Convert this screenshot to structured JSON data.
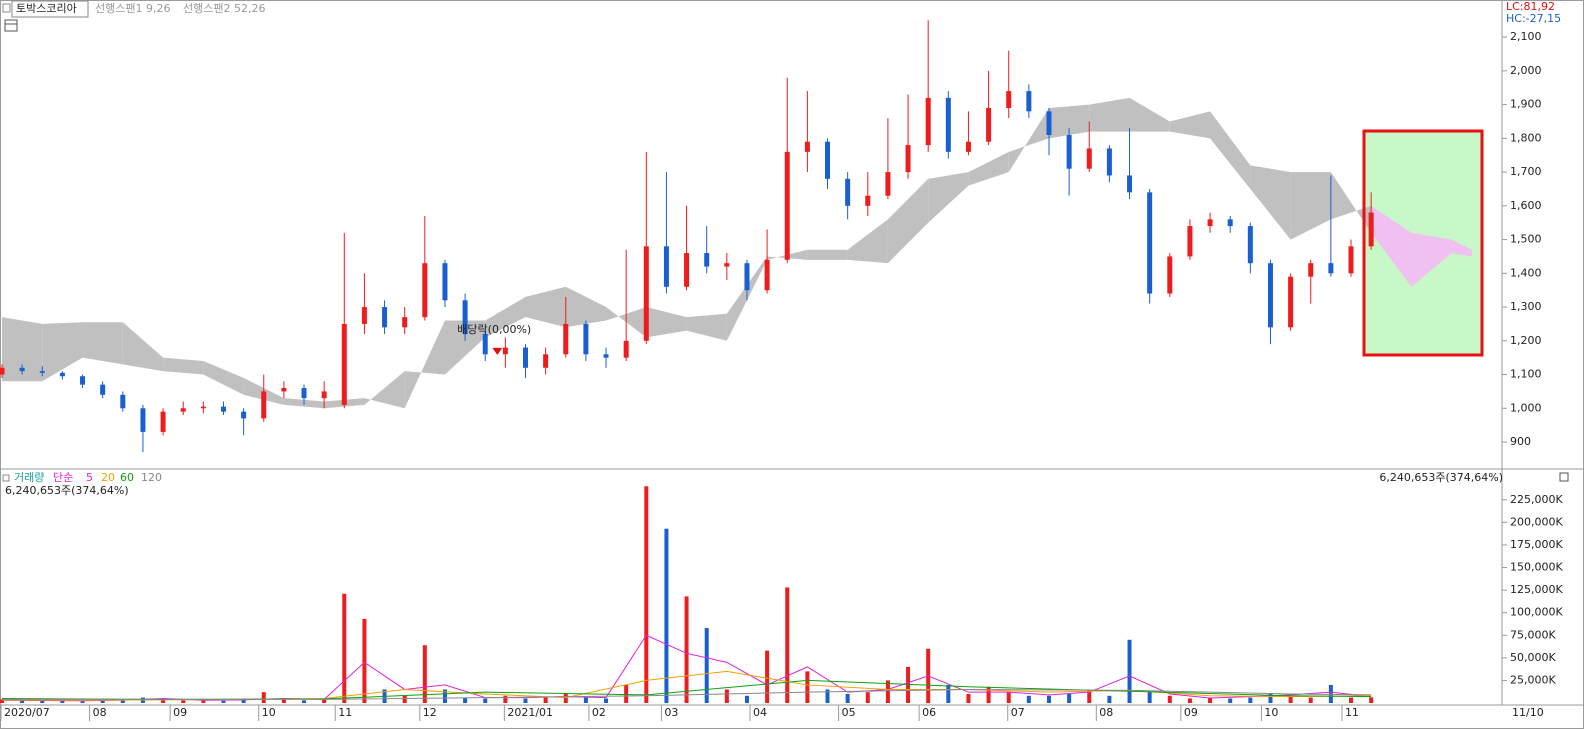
{
  "chart_data": [
    {
      "type": "candlestick",
      "title": "토박스코리아",
      "legend": [
        "선행스팬1 9,26",
        "선행스팬2 52,26"
      ],
      "annotations": [
        "LC:81,92",
        "HC:-27,15"
      ],
      "up_color": "#ee1c1c",
      "down_color": "#1a5fd0",
      "x": [
        0,
        5,
        10,
        15,
        20,
        25,
        30,
        35,
        40,
        45,
        50,
        55,
        60,
        65,
        70,
        75,
        80,
        85,
        90,
        95,
        100,
        105,
        110,
        115,
        120,
        125,
        130,
        135,
        140,
        145,
        150,
        155,
        160,
        165,
        170,
        175,
        180,
        185,
        190,
        195,
        200,
        205,
        210,
        215,
        220,
        225,
        230,
        235,
        240,
        245,
        250,
        255,
        260,
        265,
        270,
        275,
        280,
        285,
        290,
        295,
        300,
        305,
        310,
        315,
        320,
        325,
        330,
        335,
        340
      ],
      "open": [
        1100,
        1120,
        1110,
        1105,
        1095,
        1070,
        1040,
        1000,
        930,
        990,
        1000,
        1005,
        990,
        970,
        1050,
        1060,
        1030,
        1010,
        1250,
        1300,
        1240,
        1270,
        1430,
        1320,
        1220,
        1160,
        1180,
        1120,
        1160,
        1250,
        1160,
        1150,
        1200,
        1480,
        1360,
        1460,
        1420,
        1430,
        1350,
        1440,
        1760,
        1790,
        1680,
        1600,
        1630,
        1700,
        1780,
        1920,
        1760,
        1790,
        1890,
        1940,
        1880,
        1810,
        1710,
        1770,
        1690,
        1640,
        1340,
        1450,
        1540,
        1560,
        1540,
        1430,
        1240,
        1390,
        1430,
        1400,
        1480
      ],
      "high": [
        1130,
        1130,
        1125,
        1110,
        1100,
        1080,
        1050,
        1010,
        1000,
        1020,
        1020,
        1020,
        1000,
        1100,
        1080,
        1070,
        1080,
        1520,
        1400,
        1320,
        1300,
        1570,
        1440,
        1340,
        1240,
        1210,
        1190,
        1180,
        1330,
        1260,
        1180,
        1470,
        1760,
        1700,
        1600,
        1540,
        1460,
        1440,
        1530,
        1980,
        1940,
        1800,
        1700,
        1700,
        1860,
        1930,
        2150,
        1940,
        1880,
        2000,
        2060,
        1960,
        1890,
        1830,
        1850,
        1780,
        1830,
        1650,
        1460,
        1560,
        1580,
        1570,
        1550,
        1440,
        1400,
        1440,
        1690,
        1500,
        1640
      ],
      "low": [
        1090,
        1100,
        1095,
        1085,
        1060,
        1030,
        990,
        870,
        920,
        980,
        985,
        980,
        920,
        960,
        1030,
        1010,
        1000,
        1000,
        1220,
        1220,
        1220,
        1260,
        1300,
        1200,
        1140,
        1120,
        1090,
        1100,
        1150,
        1140,
        1120,
        1140,
        1190,
        1340,
        1350,
        1400,
        1380,
        1320,
        1340,
        1430,
        1700,
        1650,
        1560,
        1570,
        1620,
        1680,
        1760,
        1740,
        1750,
        1780,
        1860,
        1860,
        1750,
        1630,
        1700,
        1670,
        1620,
        1310,
        1330,
        1440,
        1520,
        1520,
        1400,
        1190,
        1230,
        1310,
        1390,
        1390,
        1470
      ],
      "close": [
        1120,
        1110,
        1105,
        1095,
        1070,
        1040,
        1000,
        930,
        990,
        1000,
        1005,
        990,
        970,
        1050,
        1060,
        1030,
        1050,
        1250,
        1300,
        1240,
        1270,
        1430,
        1320,
        1220,
        1160,
        1180,
        1120,
        1160,
        1250,
        1160,
        1150,
        1200,
        1480,
        1360,
        1460,
        1420,
        1430,
        1350,
        1440,
        1760,
        1790,
        1680,
        1600,
        1630,
        1700,
        1780,
        1920,
        1760,
        1790,
        1890,
        1940,
        1880,
        1810,
        1710,
        1770,
        1690,
        1640,
        1340,
        1450,
        1540,
        1560,
        1540,
        1430,
        1240,
        1390,
        1430,
        1400,
        1480,
        1580
      ],
      "cloud": {
        "color": "#c0c0c0",
        "future_color": "#f0c0f0",
        "x": [
          0,
          10,
          20,
          30,
          40,
          50,
          60,
          70,
          80,
          90,
          100,
          110,
          120,
          130,
          140,
          150,
          160,
          170,
          180,
          190,
          200,
          210,
          220,
          230,
          240,
          250,
          260,
          270,
          280,
          290,
          300,
          310,
          320,
          330,
          340,
          350,
          360,
          365
        ],
        "span1": [
          1080,
          1080,
          1150,
          1130,
          1110,
          1100,
          1040,
          1010,
          1000,
          1010,
          1110,
          1100,
          1210,
          1270,
          1240,
          1260,
          1300,
          1270,
          1280,
          1450,
          1440,
          1440,
          1430,
          1550,
          1660,
          1700,
          1890,
          1900,
          1920,
          1850,
          1880,
          1720,
          1700,
          1700,
          1520,
          1360,
          1460,
          1450
        ],
        "span2": [
          1270,
          1250,
          1255,
          1255,
          1150,
          1140,
          1090,
          1030,
          1020,
          1030,
          1000,
          1260,
          1260,
          1330,
          1360,
          1300,
          1210,
          1230,
          1200,
          1440,
          1470,
          1470,
          1560,
          1680,
          1700,
          1760,
          1800,
          1820,
          1820,
          1820,
          1800,
          1650,
          1500,
          1560,
          1600,
          1520,
          1500,
          1470
        ]
      },
      "event": {
        "label": "배당락(0,00%)",
        "x": 123,
        "y": 1167,
        "color": "#e01010"
      },
      "xlim": [
        0,
        372
      ],
      "ylim": [
        823,
        2210
      ],
      "yticks": [
        900,
        {
          "value": 1000,
          "label": "1,000"
        },
        {
          "value": 1100,
          "label": "1,100"
        },
        {
          "value": 1200,
          "label": "1,200"
        },
        {
          "value": 1300,
          "label": "1,300"
        },
        {
          "value": 1400,
          "label": "1,400"
        },
        {
          "value": 1500,
          "label": "1,500"
        },
        {
          "value": 1600,
          "label": "1,600"
        },
        {
          "value": 1700,
          "label": "1,700"
        },
        {
          "value": 1800,
          "label": "1,800"
        },
        {
          "value": 1900,
          "label": "1,900"
        },
        {
          "value": 2000,
          "label": "2,000"
        },
        {
          "value": 2100,
          "label": "2,100"
        }
      ]
    },
    {
      "type": "bar",
      "title": "거래량",
      "ma_title": "단순",
      "title_color": "#18a0a0",
      "value_label": "6,240,653주(374,64%)",
      "up_color": "#ee1c1c",
      "down_color": "#1a5fd0",
      "x": [
        0,
        5,
        10,
        15,
        20,
        25,
        30,
        35,
        40,
        45,
        50,
        55,
        60,
        65,
        70,
        75,
        80,
        85,
        90,
        95,
        100,
        105,
        110,
        115,
        120,
        125,
        130,
        135,
        140,
        145,
        150,
        155,
        160,
        165,
        170,
        175,
        180,
        185,
        190,
        195,
        200,
        205,
        210,
        215,
        220,
        225,
        230,
        235,
        240,
        245,
        250,
        255,
        260,
        265,
        270,
        275,
        280,
        285,
        290,
        295,
        300,
        305,
        310,
        315,
        320,
        325,
        330,
        335,
        340
      ],
      "values": [
        4000,
        3000,
        2500,
        2500,
        2000,
        3000,
        4000,
        6000,
        5000,
        3000,
        3000,
        2500,
        4000,
        12000,
        4000,
        3000,
        5000,
        121000,
        93000,
        15000,
        8000,
        64000,
        15000,
        6000,
        5000,
        8000,
        5000,
        6000,
        10000,
        6000,
        5000,
        20000,
        240000,
        193000,
        118000,
        83000,
        15000,
        8000,
        58000,
        128000,
        35000,
        15000,
        10000,
        12000,
        25000,
        40000,
        60000,
        20000,
        10000,
        18000,
        12000,
        8000,
        8000,
        10000,
        14000,
        8000,
        70000,
        12000,
        8000,
        5000,
        6000,
        5000,
        6000,
        10000,
        8000,
        6000,
        20000,
        6000,
        6241
      ],
      "series": [
        {
          "name": "5",
          "color": "#e020e0",
          "x": [
            0,
            10,
            20,
            30,
            40,
            50,
            60,
            70,
            80,
            90,
            100,
            110,
            120,
            130,
            140,
            150,
            160,
            170,
            180,
            190,
            200,
            210,
            220,
            230,
            240,
            250,
            260,
            270,
            280,
            290,
            300,
            310,
            320,
            330,
            340
          ],
          "values": [
            3000,
            2800,
            2500,
            3200,
            5000,
            3000,
            3500,
            5000,
            4000,
            45000,
            15000,
            20000,
            6000,
            6000,
            7000,
            6000,
            75000,
            55000,
            45000,
            20000,
            40000,
            12000,
            15000,
            30000,
            12000,
            12000,
            9000,
            12000,
            30000,
            10000,
            5500,
            7000,
            9000,
            12000,
            7000
          ]
        },
        {
          "name": "20",
          "color": "#f0a000",
          "x": [
            0,
            20,
            40,
            60,
            80,
            100,
            120,
            140,
            160,
            180,
            200,
            220,
            240,
            260,
            280,
            300,
            320,
            340
          ],
          "values": [
            3500,
            3000,
            3500,
            4000,
            5000,
            15000,
            10000,
            6000,
            25000,
            35000,
            20000,
            15000,
            15000,
            12000,
            14000,
            8000,
            7000,
            8000
          ]
        },
        {
          "name": "60",
          "color": "#10a010",
          "x": [
            0,
            40,
            80,
            120,
            160,
            200,
            240,
            280,
            320,
            340
          ],
          "values": [
            5000,
            4000,
            4500,
            12000,
            9000,
            25000,
            18000,
            13000,
            8000,
            7000
          ]
        },
        {
          "name": "120",
          "color": "#888888",
          "x": [
            0,
            40,
            80,
            120,
            160,
            200,
            240,
            280,
            320,
            340
          ],
          "values": [
            4000,
            4000,
            4000,
            6000,
            8000,
            12000,
            15000,
            14000,
            10000,
            9000
          ]
        }
      ],
      "xlim": [
        0,
        372
      ],
      "ylim": [
        0,
        258000
      ],
      "yticks": [
        {
          "value": 25000,
          "label": "25,000K"
        },
        {
          "value": 50000,
          "label": "50,000K"
        },
        {
          "value": 75000,
          "label": "75,000K"
        },
        {
          "value": 100000,
          "label": "100,000K"
        },
        {
          "value": 125000,
          "label": "125,000K"
        },
        {
          "value": 150000,
          "label": "150,000K"
        },
        {
          "value": 175000,
          "label": "175,000K"
        },
        {
          "value": 200000,
          "label": "200,000K"
        },
        {
          "value": 225000,
          "label": "225,000K"
        }
      ],
      "xticks": [
        {
          "value": 0,
          "label": "2020/07"
        },
        {
          "value": 22,
          "label": "08"
        },
        {
          "value": 42,
          "label": "09"
        },
        {
          "value": 64,
          "label": "10"
        },
        {
          "value": 83,
          "label": "11"
        },
        {
          "value": 104,
          "label": "12"
        },
        {
          "value": 125,
          "label": "2021/01"
        },
        {
          "value": 146,
          "label": "02"
        },
        {
          "value": 164,
          "label": "03"
        },
        {
          "value": 186,
          "label": "04"
        },
        {
          "value": 208,
          "label": "05"
        },
        {
          "value": 228,
          "label": "06"
        },
        {
          "value": 250,
          "label": "07"
        },
        {
          "value": 272,
          "label": "08"
        },
        {
          "value": 293,
          "label": "09"
        },
        {
          "value": 313,
          "label": "10"
        },
        {
          "value": 333,
          "label": "11"
        }
      ],
      "end_label": "11/10"
    }
  ]
}
